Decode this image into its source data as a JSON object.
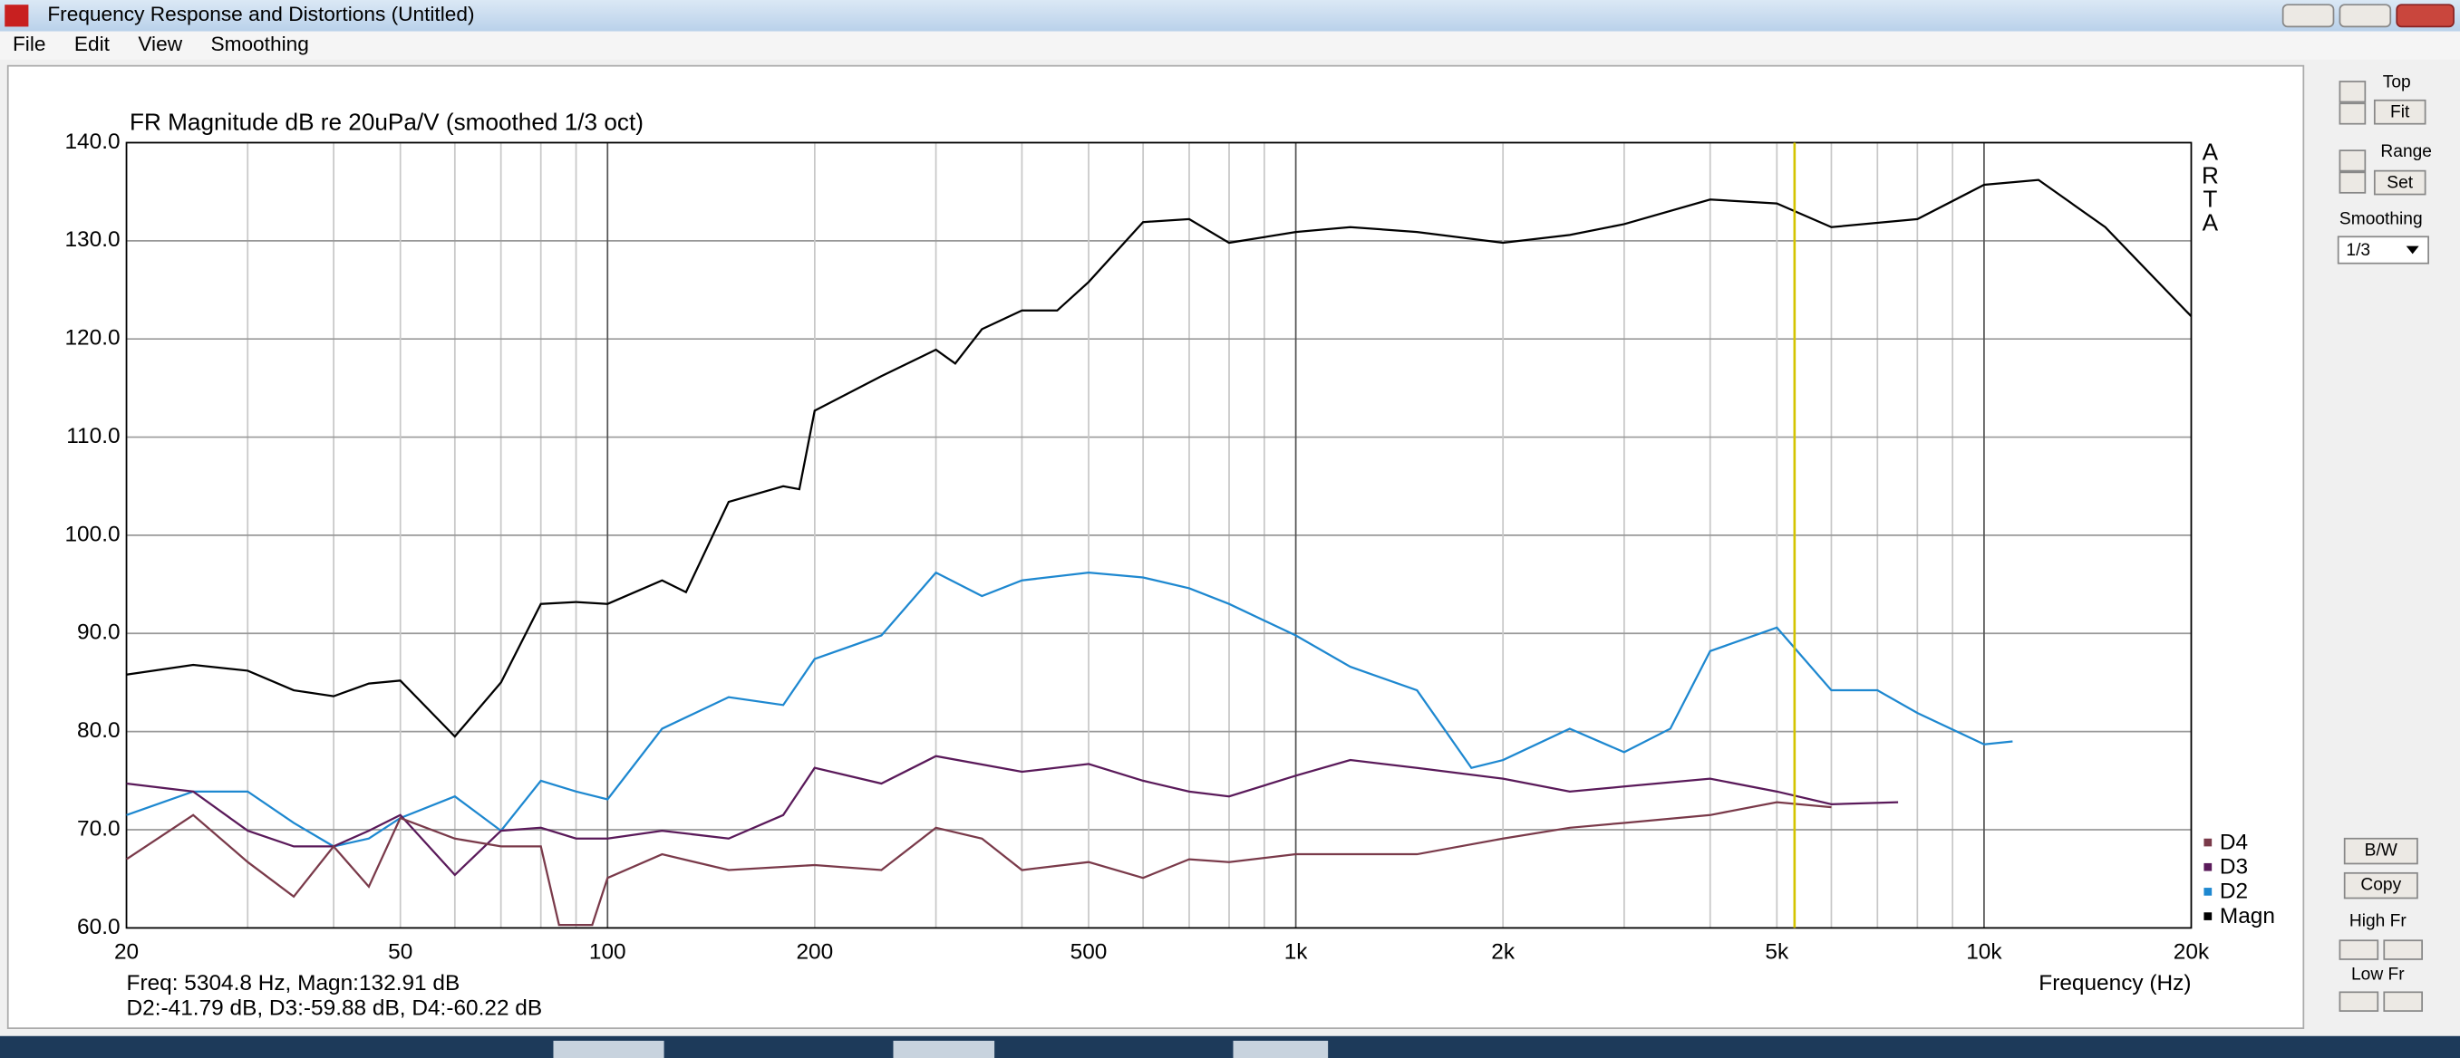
{
  "window": {
    "title": "Frequency Response and Distortions (Untitled)",
    "menu": [
      "File",
      "Edit",
      "View",
      "Smoothing"
    ],
    "panel": {
      "top": "Top",
      "fit": "Fit",
      "range": "Range",
      "set": "Set",
      "smoothing": "Smoothing",
      "smoothing_value": "1/3",
      "bw": "B/W",
      "copy": "Copy",
      "high_fr": "High Fr",
      "low_fr": "Low Fr"
    },
    "readout": [
      "Freq: 5304.8 Hz, Magn:132.91 dB",
      "D2:-41.79 dB, D3:-59.88 dB, D4:-60.22 dB"
    ]
  },
  "chart_data": {
    "type": "line",
    "title": "FR Magnitude dB re 20uPa/V (smoothed 1/3 oct)",
    "watermark": [
      "A",
      "R",
      "T",
      "A"
    ],
    "x_label": "Frequency (Hz)",
    "log_x": true,
    "grid": true,
    "legend": "lower right",
    "cursor_x": 5304.8,
    "cursor_color": "#d4c400",
    "xlim": [
      20,
      20000
    ],
    "xticks": [
      20,
      50,
      100,
      200,
      500,
      {
        "value": 1000,
        "label": "1k"
      },
      {
        "value": 2000,
        "label": "2k"
      },
      {
        "value": 5000,
        "label": "5k"
      },
      {
        "value": 10000,
        "label": "10k"
      },
      {
        "value": 20000,
        "label": "20k"
      }
    ],
    "xgrid": [
      30,
      40,
      60,
      70,
      80,
      90,
      300,
      400,
      600,
      700,
      800,
      900,
      3000,
      4000,
      6000,
      7000,
      8000,
      9000
    ],
    "ylim": [
      60,
      140
    ],
    "yticks": [
      {
        "value": 60,
        "label": "60.0"
      },
      {
        "value": 70,
        "label": "70.0"
      },
      {
        "value": 80,
        "label": "80.0"
      },
      {
        "value": 90,
        "label": "90.0"
      },
      {
        "value": 100,
        "label": "100.0"
      },
      {
        "value": 110,
        "label": "110.0"
      },
      {
        "value": 120,
        "label": "120.0"
      },
      {
        "value": 130,
        "label": "130.0"
      },
      {
        "value": 140,
        "label": "140.0"
      }
    ],
    "series": [
      {
        "name": "Magn",
        "color": "#000000",
        "x": [
          20,
          25,
          30,
          35,
          40,
          45,
          50,
          60,
          70,
          80,
          90,
          100,
          120,
          130,
          150,
          180,
          190,
          200,
          250,
          300,
          320,
          350,
          400,
          450,
          500,
          600,
          700,
          800,
          1000,
          1200,
          1500,
          2000,
          2500,
          3000,
          4000,
          5000,
          6000,
          8000,
          10000,
          12000,
          15000,
          20000
        ],
        "values": [
          85.8,
          86.8,
          86.2,
          84.2,
          83.6,
          84.9,
          85.2,
          79.5,
          85,
          93,
          93.2,
          93,
          95.4,
          94.2,
          103.4,
          105,
          104.7,
          112.7,
          116.2,
          118.9,
          117.5,
          121,
          122.9,
          122.9,
          125.8,
          131.9,
          132.2,
          129.8,
          130.9,
          131.4,
          130.9,
          129.8,
          130.6,
          131.7,
          134.2,
          133.8,
          131.4,
          132.2,
          135.7,
          136.2,
          131.4,
          122.3
        ]
      },
      {
        "name": "D2",
        "color": "#1e88d0",
        "x": [
          20,
          25,
          30,
          35,
          40,
          45,
          50,
          60,
          70,
          80,
          90,
          100,
          120,
          150,
          180,
          200,
          250,
          300,
          350,
          400,
          500,
          600,
          700,
          800,
          1000,
          1200,
          1500,
          1800,
          2000,
          2500,
          3000,
          3500,
          4000,
          5000,
          6000,
          7000,
          8000,
          10000,
          11000
        ],
        "values": [
          71.5,
          73.9,
          73.9,
          70.7,
          68.3,
          69.1,
          71.2,
          73.4,
          69.9,
          75,
          73.9,
          73.1,
          80.3,
          83.5,
          82.7,
          87.4,
          89.8,
          96.2,
          93.8,
          95.4,
          96.2,
          95.7,
          94.6,
          93,
          89.8,
          86.6,
          84.2,
          76.3,
          77.1,
          80.3,
          77.9,
          80.3,
          88.2,
          90.6,
          84.2,
          84.2,
          81.9,
          78.7,
          79
        ]
      },
      {
        "name": "D3",
        "color": "#5a1a5a",
        "x": [
          20,
          25,
          30,
          35,
          40,
          45,
          50,
          60,
          70,
          80,
          90,
          100,
          120,
          150,
          180,
          200,
          250,
          300,
          400,
          500,
          600,
          700,
          800,
          1000,
          1200,
          1500,
          2000,
          2500,
          3000,
          4000,
          5000,
          6000,
          7500
        ],
        "values": [
          74.7,
          73.9,
          69.9,
          68.3,
          68.3,
          69.9,
          71.5,
          65.4,
          69.9,
          70.2,
          69.1,
          69.1,
          69.9,
          69.1,
          71.5,
          76.3,
          74.7,
          77.5,
          75.9,
          76.7,
          75,
          73.9,
          73.4,
          75.5,
          77.1,
          76.3,
          75.2,
          73.9,
          74.4,
          75.2,
          73.9,
          72.6,
          72.8
        ]
      },
      {
        "name": "D4",
        "color": "#7a3a4a",
        "x": [
          20,
          25,
          30,
          35,
          40,
          45,
          50,
          60,
          70,
          80,
          85,
          95,
          100,
          120,
          150,
          200,
          250,
          300,
          350,
          400,
          500,
          600,
          700,
          800,
          1000,
          1500,
          2000,
          2500,
          3000,
          4000,
          5000,
          6000
        ],
        "values": [
          67,
          71.5,
          66.7,
          63.2,
          68.3,
          64.2,
          71.2,
          69.1,
          68.3,
          68.3,
          60.3,
          60.3,
          65.1,
          67.5,
          65.9,
          66.4,
          65.9,
          70.2,
          69.1,
          65.9,
          66.7,
          65.1,
          67,
          66.7,
          67.5,
          67.5,
          69.1,
          70.2,
          70.7,
          71.5,
          72.8,
          72.3
        ]
      }
    ]
  }
}
